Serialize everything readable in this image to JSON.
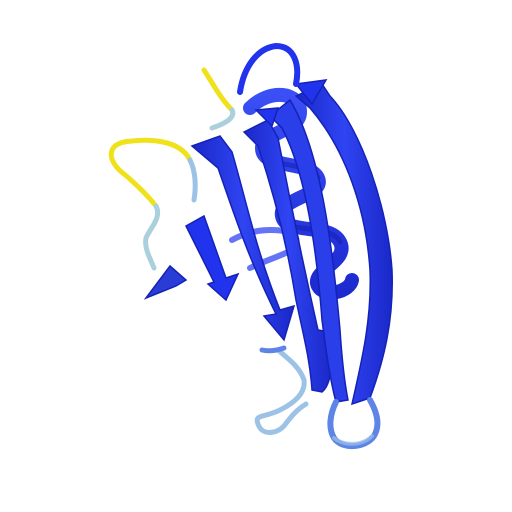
{
  "scene": {
    "subject": "protein-cartoon-structure",
    "style": "ribbon",
    "background_color": "#ffffff"
  },
  "colors": {
    "high_confidence": "#2233ee",
    "high_confidence_dark": "#1522b8",
    "high_confidence_light": "#4a5cf5",
    "medium_confidence": "#5d84e6",
    "low_confidence": "#9cc2e6",
    "loop_pale": "#a9d0dc",
    "very_low_confidence": "#f0e21a"
  },
  "features": {
    "beta_strands": 5,
    "helices": 1,
    "loops": 6
  }
}
